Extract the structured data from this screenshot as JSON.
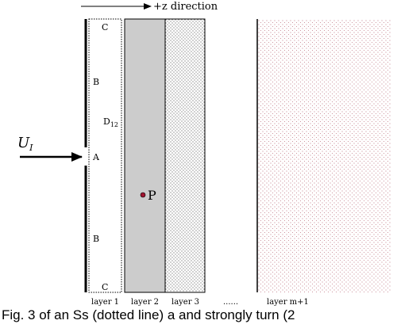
{
  "direction_label": "+z direction",
  "input_label": "U",
  "input_subscript": "I",
  "point_labels": {
    "a": "A",
    "b_upper": "B",
    "b_lower": "B",
    "c_top": "C",
    "c_bottom": "C",
    "d": "D",
    "d_subscript": "12",
    "p": "P"
  },
  "layers": {
    "layer1": "layer 1",
    "layer2": "layer 2",
    "layer3": "layer 3",
    "ellipsis": "......",
    "last": "layer m+1"
  },
  "caption": "Fig. 3 of an Ss (dotted line) a and strongly turn (2"
}
